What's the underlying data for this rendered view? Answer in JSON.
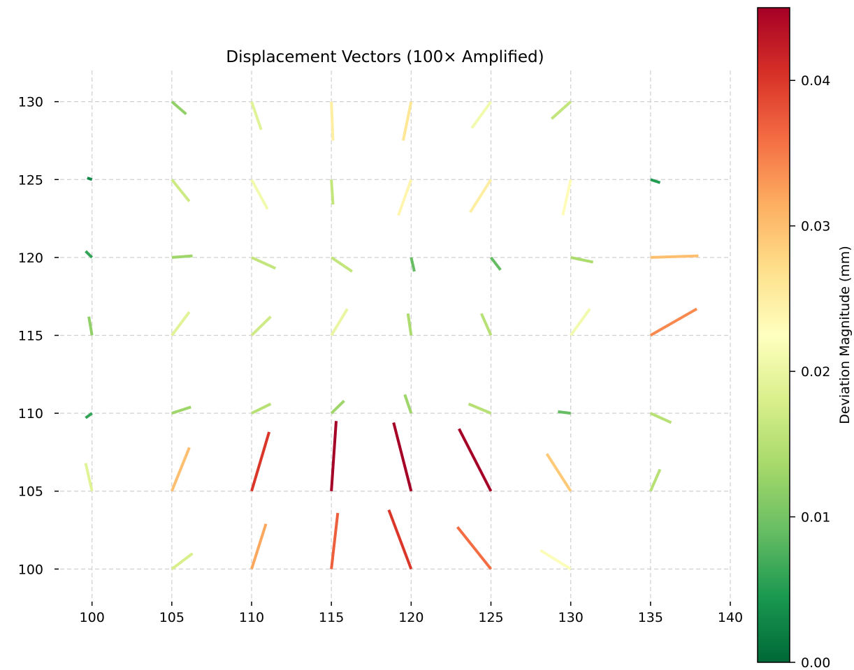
{
  "chart_data": {
    "type": "quiver",
    "title": "Displacement Vectors (100× Amplified)",
    "xlabel": "",
    "ylabel": "",
    "xlim": [
      98,
      140
    ],
    "ylim": [
      98,
      132
    ],
    "x_ticks": [
      100,
      105,
      110,
      115,
      120,
      125,
      130,
      135,
      140
    ],
    "y_ticks": [
      100,
      105,
      110,
      115,
      120,
      125,
      130
    ],
    "grid": true,
    "amplification": 100,
    "colorbar": {
      "label": "Deviation Magnitude (mm)",
      "colormap": "RdYlGn_r",
      "range": [
        0,
        0.045
      ],
      "ticks": [
        0.0,
        0.01,
        0.02,
        0.03,
        0.04
      ],
      "tick_labels": [
        "0.00",
        "0.01",
        "0.02",
        "0.03",
        "0.04"
      ],
      "stops": [
        "#006837",
        "#1a9850",
        "#66bd63",
        "#a6d96a",
        "#d9ef8b",
        "#ffffbf",
        "#fee08b",
        "#fdae61",
        "#f46d43",
        "#d73027",
        "#a50026"
      ]
    },
    "vectors": [
      {
        "x": 105,
        "y": 100,
        "dx": 1.3,
        "dy": 1.0,
        "m": 0.018
      },
      {
        "x": 110,
        "y": 100,
        "dx": 0.9,
        "dy": 2.9,
        "m": 0.032
      },
      {
        "x": 115,
        "y": 100,
        "dx": 0.4,
        "dy": 3.6,
        "m": 0.037
      },
      {
        "x": 120,
        "y": 100,
        "dx": -1.4,
        "dy": 3.8,
        "m": 0.04
      },
      {
        "x": 125,
        "y": 100,
        "dx": -2.1,
        "dy": 2.7,
        "m": 0.036
      },
      {
        "x": 130,
        "y": 100,
        "dx": -1.9,
        "dy": 1.2,
        "m": 0.022
      },
      {
        "x": 100,
        "y": 105,
        "dx": -0.4,
        "dy": 1.8,
        "m": 0.019
      },
      {
        "x": 105,
        "y": 105,
        "dx": 1.1,
        "dy": 2.8,
        "m": 0.03
      },
      {
        "x": 110,
        "y": 105,
        "dx": 1.1,
        "dy": 3.8,
        "m": 0.04
      },
      {
        "x": 115,
        "y": 105,
        "dx": 0.3,
        "dy": 4.5,
        "m": 0.045
      },
      {
        "x": 120,
        "y": 105,
        "dx": -1.1,
        "dy": 4.4,
        "m": 0.045
      },
      {
        "x": 125,
        "y": 105,
        "dx": -2.0,
        "dy": 4.0,
        "m": 0.045
      },
      {
        "x": 130,
        "y": 105,
        "dx": -1.5,
        "dy": 2.4,
        "m": 0.029
      },
      {
        "x": 135,
        "y": 105,
        "dx": 0.6,
        "dy": 1.4,
        "m": 0.015
      },
      {
        "x": 100,
        "y": 110,
        "dx": -0.4,
        "dy": -0.3,
        "m": 0.006
      },
      {
        "x": 105,
        "y": 110,
        "dx": 1.2,
        "dy": 0.4,
        "m": 0.013
      },
      {
        "x": 110,
        "y": 110,
        "dx": 1.2,
        "dy": 0.6,
        "m": 0.015
      },
      {
        "x": 115,
        "y": 110,
        "dx": 0.8,
        "dy": 0.8,
        "m": 0.013
      },
      {
        "x": 120,
        "y": 110,
        "dx": -0.4,
        "dy": 1.2,
        "m": 0.013
      },
      {
        "x": 125,
        "y": 110,
        "dx": -1.4,
        "dy": 0.6,
        "m": 0.015
      },
      {
        "x": 130,
        "y": 110,
        "dx": -0.8,
        "dy": 0.1,
        "m": 0.009
      },
      {
        "x": 135,
        "y": 110,
        "dx": 1.3,
        "dy": -0.6,
        "m": 0.015
      },
      {
        "x": 100,
        "y": 115,
        "dx": -0.2,
        "dy": 1.2,
        "m": 0.012
      },
      {
        "x": 105,
        "y": 115,
        "dx": 1.1,
        "dy": 1.5,
        "m": 0.019
      },
      {
        "x": 110,
        "y": 115,
        "dx": 1.2,
        "dy": 1.2,
        "m": 0.017
      },
      {
        "x": 115,
        "y": 115,
        "dx": 1.0,
        "dy": 1.7,
        "m": 0.02
      },
      {
        "x": 120,
        "y": 115,
        "dx": -0.2,
        "dy": 1.4,
        "m": 0.014
      },
      {
        "x": 125,
        "y": 115,
        "dx": -0.6,
        "dy": 1.4,
        "m": 0.015
      },
      {
        "x": 130,
        "y": 115,
        "dx": 1.2,
        "dy": 1.7,
        "m": 0.021
      },
      {
        "x": 135,
        "y": 115,
        "dx": 2.9,
        "dy": 1.7,
        "m": 0.034
      },
      {
        "x": 100,
        "y": 120,
        "dx": -0.4,
        "dy": 0.4,
        "m": 0.006
      },
      {
        "x": 105,
        "y": 120,
        "dx": 1.3,
        "dy": 0.1,
        "m": 0.013
      },
      {
        "x": 110,
        "y": 120,
        "dx": 1.5,
        "dy": -0.7,
        "m": 0.016
      },
      {
        "x": 115,
        "y": 120,
        "dx": 1.3,
        "dy": -0.9,
        "m": 0.016
      },
      {
        "x": 120,
        "y": 120,
        "dx": 0.2,
        "dy": -0.9,
        "m": 0.009
      },
      {
        "x": 125,
        "y": 120,
        "dx": 0.6,
        "dy": -0.8,
        "m": 0.009
      },
      {
        "x": 130,
        "y": 120,
        "dx": 1.4,
        "dy": -0.3,
        "m": 0.014
      },
      {
        "x": 135,
        "y": 120,
        "dx": 3.0,
        "dy": 0.1,
        "m": 0.03
      },
      {
        "x": 100,
        "y": 125,
        "dx": -0.3,
        "dy": 0.1,
        "m": 0.003
      },
      {
        "x": 105,
        "y": 125,
        "dx": 1.1,
        "dy": -1.4,
        "m": 0.017
      },
      {
        "x": 110,
        "y": 125,
        "dx": 1.0,
        "dy": -1.9,
        "m": 0.021
      },
      {
        "x": 115,
        "y": 125,
        "dx": 0.1,
        "dy": -1.6,
        "m": 0.016
      },
      {
        "x": 120,
        "y": 125,
        "dx": -0.8,
        "dy": -2.3,
        "m": 0.024
      },
      {
        "x": 125,
        "y": 125,
        "dx": -1.3,
        "dy": -2.1,
        "m": 0.025
      },
      {
        "x": 130,
        "y": 125,
        "dx": -0.5,
        "dy": -2.3,
        "m": 0.023
      },
      {
        "x": 135,
        "y": 125,
        "dx": 0.6,
        "dy": -0.2,
        "m": 0.005
      },
      {
        "x": 105,
        "y": 130,
        "dx": 0.9,
        "dy": -0.8,
        "m": 0.012
      },
      {
        "x": 110,
        "y": 130,
        "dx": 0.6,
        "dy": -1.8,
        "m": 0.019
      },
      {
        "x": 115,
        "y": 130,
        "dx": 0.1,
        "dy": -2.5,
        "m": 0.025
      },
      {
        "x": 120,
        "y": 130,
        "dx": -0.5,
        "dy": -2.5,
        "m": 0.026
      },
      {
        "x": 125,
        "y": 130,
        "dx": -1.2,
        "dy": -1.7,
        "m": 0.021
      },
      {
        "x": 130,
        "y": 130,
        "dx": -1.2,
        "dy": -1.1,
        "m": 0.016
      }
    ]
  }
}
